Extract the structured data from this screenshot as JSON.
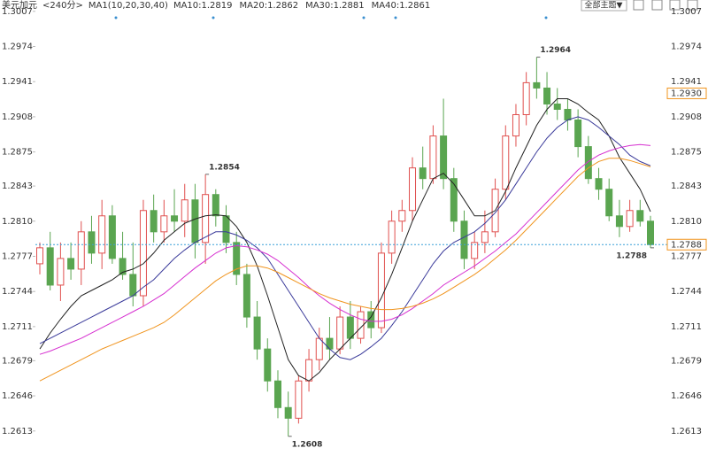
{
  "chart_data": {
    "type": "candlestick",
    "header": [
      "美元加元",
      "<240分>",
      "MA1(10,20,30,40)"
    ],
    "header_colors": [
      "#222222",
      "#f0941e",
      "#222222"
    ],
    "button": "全部主题▼",
    "open": [
      1.277,
      1.2785,
      1.275,
      1.2775,
      1.2765,
      1.28,
      1.278,
      1.2815,
      1.2775,
      1.276,
      1.274,
      1.282,
      1.28,
      1.2815,
      1.281,
      1.283,
      1.279,
      1.2835,
      1.2815,
      1.279,
      1.276,
      1.272,
      1.269,
      1.266,
      1.2635,
      1.2625,
      1.266,
      1.268,
      1.27,
      1.269,
      1.272,
      1.27,
      1.2725,
      1.271,
      1.278,
      1.281,
      1.282,
      1.286,
      1.285,
      1.289,
      1.285,
      1.281,
      1.2775,
      1.279,
      1.28,
      1.284,
      1.289,
      1.291,
      1.294,
      1.2935,
      1.292,
      1.2915,
      1.2905,
      1.288,
      1.285,
      1.284,
      1.2815,
      1.2805,
      1.282,
      1.281
    ],
    "high": [
      1.279,
      1.28,
      1.279,
      1.279,
      1.281,
      1.2815,
      1.283,
      1.2825,
      1.28,
      1.279,
      1.283,
      1.2835,
      1.283,
      1.284,
      1.2845,
      1.2845,
      1.2854,
      1.284,
      1.2825,
      1.28,
      1.277,
      1.2735,
      1.27,
      1.267,
      1.265,
      1.2665,
      1.269,
      1.271,
      1.272,
      1.273,
      1.2735,
      1.273,
      1.2735,
      1.279,
      1.282,
      1.283,
      1.287,
      1.288,
      1.29,
      1.2925,
      1.286,
      1.282,
      1.28,
      1.282,
      1.285,
      1.29,
      1.292,
      1.295,
      1.2964,
      1.295,
      1.2935,
      1.2925,
      1.2915,
      1.289,
      1.286,
      1.285,
      1.283,
      1.283,
      1.283,
      1.2815
    ],
    "low": [
      1.276,
      1.2745,
      1.2735,
      1.2755,
      1.275,
      1.277,
      1.2765,
      1.277,
      1.2755,
      1.273,
      1.273,
      1.279,
      1.279,
      1.28,
      1.2795,
      1.2775,
      1.277,
      1.2805,
      1.278,
      1.275,
      1.271,
      1.268,
      1.265,
      1.2625,
      1.2608,
      1.262,
      1.265,
      1.267,
      1.268,
      1.2685,
      1.269,
      1.2695,
      1.27,
      1.2705,
      1.277,
      1.28,
      1.281,
      1.284,
      1.2845,
      1.284,
      1.28,
      1.2765,
      1.2765,
      1.278,
      1.2795,
      1.283,
      1.288,
      1.29,
      1.2925,
      1.291,
      1.2905,
      1.2895,
      1.287,
      1.2845,
      1.283,
      1.281,
      1.2795,
      1.28,
      1.2805,
      1.2785
    ],
    "close": [
      1.2785,
      1.275,
      1.2775,
      1.2765,
      1.28,
      1.278,
      1.2815,
      1.2775,
      1.276,
      1.274,
      1.282,
      1.28,
      1.2815,
      1.281,
      1.283,
      1.279,
      1.2835,
      1.2815,
      1.279,
      1.276,
      1.272,
      1.269,
      1.266,
      1.2635,
      1.2625,
      1.266,
      1.268,
      1.27,
      1.269,
      1.272,
      1.27,
      1.2725,
      1.271,
      1.278,
      1.281,
      1.282,
      1.286,
      1.285,
      1.289,
      1.285,
      1.281,
      1.2775,
      1.279,
      1.28,
      1.284,
      1.289,
      1.291,
      1.294,
      1.2935,
      1.292,
      1.2915,
      1.2905,
      1.288,
      1.285,
      1.284,
      1.2815,
      1.2805,
      1.282,
      1.281,
      1.2788
    ],
    "up_color": "#e0504f",
    "down_color": "#5aa550",
    "series": [
      {
        "name": "MA10:1.2819",
        "color": "#222222",
        "values": [
          1.269,
          1.2705,
          1.2718,
          1.273,
          1.274,
          1.2745,
          1.275,
          1.2755,
          1.2762,
          1.2765,
          1.277,
          1.278,
          1.2792,
          1.28,
          1.2808,
          1.2812,
          1.2815,
          1.2816,
          1.2815,
          1.2805,
          1.279,
          1.2768,
          1.274,
          1.271,
          1.268,
          1.2665,
          1.266,
          1.2668,
          1.268,
          1.269,
          1.27,
          1.271,
          1.272,
          1.2738,
          1.276,
          1.2785,
          1.281,
          1.283,
          1.285,
          1.2855,
          1.2845,
          1.283,
          1.2815,
          1.2815,
          1.282,
          1.2838,
          1.286,
          1.288,
          1.29,
          1.2915,
          1.2925,
          1.2925,
          1.292,
          1.2912,
          1.2905,
          1.289,
          1.287,
          1.2855,
          1.284,
          1.2819
        ]
      },
      {
        "name": "MA20:1.2862",
        "color": "#3a3a9a",
        "values": [
          1.2695,
          1.27,
          1.2705,
          1.271,
          1.2715,
          1.272,
          1.2725,
          1.273,
          1.2735,
          1.274,
          1.2748,
          1.2755,
          1.2765,
          1.2775,
          1.2783,
          1.279,
          1.2795,
          1.28,
          1.28,
          1.2797,
          1.2792,
          1.2785,
          1.2775,
          1.276,
          1.2745,
          1.273,
          1.2715,
          1.27,
          1.269,
          1.2682,
          1.268,
          1.2685,
          1.2692,
          1.27,
          1.2712,
          1.2725,
          1.274,
          1.2755,
          1.277,
          1.2782,
          1.279,
          1.2795,
          1.28,
          1.2808,
          1.2818,
          1.283,
          1.2845,
          1.286,
          1.2875,
          1.2888,
          1.2898,
          1.2905,
          1.2908,
          1.2905,
          1.2898,
          1.289,
          1.2882,
          1.2872,
          1.2866,
          1.2862
        ]
      },
      {
        "name": "MA30:1.2881",
        "color": "#d62fd0",
        "values": [
          1.2685,
          1.2688,
          1.2692,
          1.2696,
          1.27,
          1.2705,
          1.271,
          1.2715,
          1.272,
          1.2725,
          1.273,
          1.2736,
          1.2742,
          1.275,
          1.2758,
          1.2766,
          1.2773,
          1.278,
          1.2785,
          1.2787,
          1.2786,
          1.2783,
          1.2779,
          1.2773,
          1.2765,
          1.2757,
          1.2748,
          1.274,
          1.2733,
          1.2727,
          1.2722,
          1.2718,
          1.2716,
          1.2716,
          1.2718,
          1.2722,
          1.2728,
          1.2735,
          1.2742,
          1.275,
          1.2756,
          1.2762,
          1.2768,
          1.2775,
          1.2782,
          1.279,
          1.2798,
          1.2808,
          1.2818,
          1.2828,
          1.2838,
          1.2848,
          1.2858,
          1.2866,
          1.2872,
          1.2876,
          1.2879,
          1.2881,
          1.2882,
          1.2881
        ]
      },
      {
        "name": "MA40:1.2861",
        "color": "#f0941e",
        "values": [
          1.266,
          1.2665,
          1.267,
          1.2675,
          1.268,
          1.2685,
          1.269,
          1.2694,
          1.2698,
          1.2702,
          1.2706,
          1.271,
          1.2715,
          1.2722,
          1.273,
          1.2738,
          1.2746,
          1.2754,
          1.276,
          1.2765,
          1.2768,
          1.2768,
          1.2766,
          1.2762,
          1.2757,
          1.2752,
          1.2747,
          1.2742,
          1.2738,
          1.2735,
          1.2732,
          1.273,
          1.2728,
          1.2727,
          1.2727,
          1.2728,
          1.273,
          1.2733,
          1.2737,
          1.2742,
          1.2748,
          1.2754,
          1.276,
          1.2767,
          1.2775,
          1.2783,
          1.2792,
          1.2802,
          1.2812,
          1.2822,
          1.2832,
          1.2842,
          1.2852,
          1.286,
          1.2866,
          1.2869,
          1.2869,
          1.2867,
          1.2864,
          1.2861
        ]
      }
    ],
    "annotations": [
      {
        "text": "1.2854",
        "value": 1.2854,
        "color": "#d9433f"
      },
      {
        "text": "1.2964",
        "value": 1.2964,
        "color": "#d9433f"
      },
      {
        "text": "1.2608",
        "value": 1.2608,
        "color": "#3f9a3c"
      },
      {
        "text": "1.2788",
        "value": 1.2788,
        "color": "#3f9a3c"
      }
    ],
    "price_tags": [
      {
        "value": 1.293,
        "label": "1.2930",
        "color": "#f0941e"
      },
      {
        "value": 1.2788,
        "label": "1.2788",
        "color": "#f0941e",
        "line_color": "#3aa0d8"
      }
    ],
    "ylim": [
      1.2602,
      1.3011
    ],
    "yticks": [
      1.3007,
      1.2974,
      1.2941,
      1.2908,
      1.2875,
      1.2843,
      {
        "value": 1.281,
        "label": "1.2810"
      },
      1.2777,
      1.2744,
      1.2711,
      1.2679,
      1.2646,
      1.2613
    ]
  }
}
